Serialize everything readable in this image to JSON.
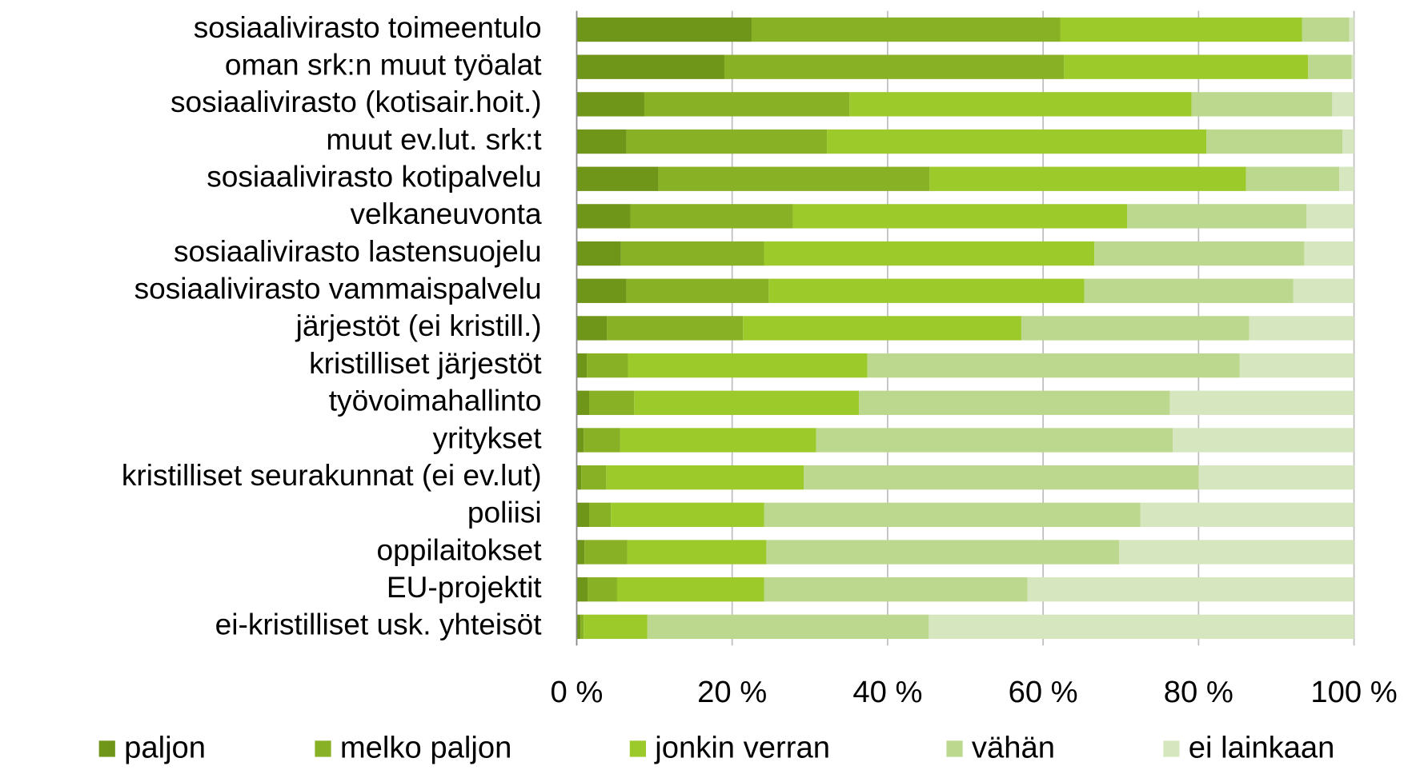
{
  "chart_data": {
    "type": "stacked_barh",
    "categories": [
      "sosiaalivirasto toimeentulo",
      "oman srk:n muut työalat",
      "sosiaalivirasto (kotisair.hoit.)",
      "muut ev.lut. srk:t",
      "sosiaalivirasto kotipalvelu",
      "velkaneuvonta",
      "sosiaalivirasto lastensuojelu",
      "sosiaalivirasto vammaispalvelu",
      "järjestöt (ei kristill.)",
      "kristilliset järjestöt",
      "työvoimahallinto",
      "yritykset",
      "kristilliset seurakunnat (ei ev.lut)",
      "poliisi",
      "oppilaitokset",
      "EU-projektit",
      "ei-kristilliset usk. yhteisöt"
    ],
    "series": [
      {
        "name": "paljon",
        "color": "#6f9618",
        "values": [
          22.5,
          19.0,
          8.7,
          6.4,
          10.5,
          6.9,
          5.7,
          6.4,
          3.9,
          1.3,
          1.6,
          0.9,
          0.6,
          1.6,
          1.0,
          1.4,
          0.5
        ]
      },
      {
        "name": "melko paljon",
        "color": "#88b125",
        "values": [
          39.7,
          43.7,
          26.4,
          25.8,
          34.9,
          20.9,
          18.4,
          18.3,
          17.5,
          5.3,
          5.8,
          4.7,
          3.2,
          2.8,
          5.5,
          3.8,
          0.4
        ]
      },
      {
        "name": "jonkin verran",
        "color": "#9dca2b",
        "values": [
          31.1,
          31.4,
          44.0,
          48.8,
          40.7,
          43.0,
          42.5,
          40.6,
          35.8,
          30.8,
          28.9,
          25.2,
          25.4,
          19.7,
          17.9,
          18.9,
          8.2
        ]
      },
      {
        "name": "vähän",
        "color": "#bcd88e",
        "values": [
          6.1,
          5.6,
          18.1,
          17.5,
          12.0,
          23.1,
          27.0,
          26.9,
          29.3,
          47.9,
          40.0,
          45.9,
          50.8,
          48.4,
          45.4,
          33.9,
          36.2
        ]
      },
      {
        "name": "ei lainkaan",
        "color": "#d6e6bf",
        "values": [
          0.6,
          0.3,
          2.8,
          1.5,
          1.9,
          6.1,
          6.4,
          7.8,
          13.5,
          14.7,
          23.7,
          23.3,
          20.0,
          27.5,
          30.2,
          42.0,
          54.7
        ]
      }
    ],
    "xlim": [
      0,
      100
    ],
    "xticks": [
      {
        "value": 0,
        "label": "0 %"
      },
      {
        "value": 20,
        "label": "20 %"
      },
      {
        "value": 40,
        "label": "40 %"
      },
      {
        "value": 60,
        "label": "60 %"
      },
      {
        "value": 80,
        "label": "80 %"
      },
      {
        "value": 100,
        "label": "100 %"
      }
    ],
    "grid": true,
    "legend": "bottom"
  }
}
